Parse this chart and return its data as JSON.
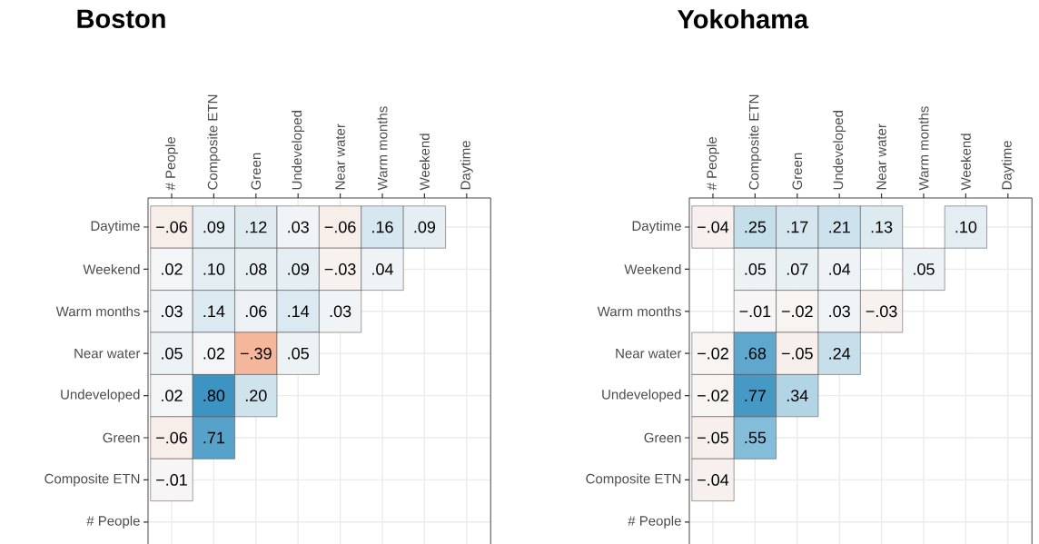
{
  "chart_data": [
    {
      "type": "heatmap",
      "title": "Boston",
      "grid": true,
      "categories": [
        "# People",
        "Composite ETN",
        "Green",
        "Undeveloped",
        "Near water",
        "Warm months",
        "Weekend",
        "Daytime"
      ],
      "y_categories": [
        "Daytime",
        "Weekend",
        "Warm months",
        "Near water",
        "Undeveloped",
        "Green",
        "Composite ETN",
        "# People"
      ],
      "cells": [
        [
          -0.06,
          0.09,
          0.12,
          0.03,
          -0.06,
          0.16,
          0.09,
          null
        ],
        [
          0.02,
          0.1,
          0.08,
          0.09,
          -0.03,
          0.04,
          null,
          null
        ],
        [
          0.03,
          0.14,
          0.06,
          0.14,
          0.03,
          null,
          null,
          null
        ],
        [
          0.05,
          0.02,
          -0.39,
          0.05,
          null,
          null,
          null,
          null
        ],
        [
          0.02,
          0.8,
          0.2,
          null,
          null,
          null,
          null,
          null
        ],
        [
          -0.06,
          0.71,
          null,
          null,
          null,
          null,
          null,
          null
        ],
        [
          -0.01,
          null,
          null,
          null,
          null,
          null,
          null,
          null
        ],
        [
          null,
          null,
          null,
          null,
          null,
          null,
          null,
          null
        ]
      ],
      "cell_labels": [
        [
          "−.06",
          ".09",
          ".12",
          ".03",
          "−.06",
          ".16",
          ".09",
          null
        ],
        [
          ".02",
          ".10",
          ".08",
          ".09",
          "−.03",
          ".04",
          null,
          null
        ],
        [
          ".03",
          ".14",
          ".06",
          ".14",
          ".03",
          null,
          null,
          null
        ],
        [
          ".05",
          ".02",
          "−.39",
          ".05",
          null,
          null,
          null,
          null
        ],
        [
          ".02",
          ".80",
          ".20",
          null,
          null,
          null,
          null,
          null
        ],
        [
          "−.06",
          ".71",
          null,
          null,
          null,
          null,
          null,
          null
        ],
        [
          "−.01",
          null,
          null,
          null,
          null,
          null,
          null,
          null
        ],
        [
          null,
          null,
          null,
          null,
          null,
          null,
          null,
          null
        ]
      ]
    },
    {
      "type": "heatmap",
      "title": "Yokohama",
      "grid": true,
      "categories": [
        "# People",
        "Composite ETN",
        "Green",
        "Undeveloped",
        "Near water",
        "Warm months",
        "Weekend",
        "Daytime"
      ],
      "y_categories": [
        "Daytime",
        "Weekend",
        "Warm months",
        "Near water",
        "Undeveloped",
        "Green",
        "Composite ETN",
        "# People"
      ],
      "cells": [
        [
          -0.04,
          0.25,
          0.17,
          0.21,
          0.13,
          null,
          0.1,
          null
        ],
        [
          null,
          0.05,
          0.07,
          0.04,
          null,
          0.05,
          null,
          null
        ],
        [
          null,
          -0.01,
          -0.02,
          0.03,
          -0.03,
          null,
          null,
          null
        ],
        [
          -0.02,
          0.68,
          -0.05,
          0.24,
          null,
          null,
          null,
          null
        ],
        [
          -0.02,
          0.77,
          0.34,
          null,
          null,
          null,
          null,
          null
        ],
        [
          -0.05,
          0.55,
          null,
          null,
          null,
          null,
          null,
          null
        ],
        [
          -0.04,
          null,
          null,
          null,
          null,
          null,
          null,
          null
        ],
        [
          null,
          null,
          null,
          null,
          null,
          null,
          null,
          null
        ]
      ],
      "cell_labels": [
        [
          "−.04",
          ".25",
          ".17",
          ".21",
          ".13",
          null,
          ".10",
          null
        ],
        [
          null,
          ".05",
          ".07",
          ".04",
          null,
          ".05",
          null,
          null
        ],
        [
          null,
          "−.01",
          "−.02",
          ".03",
          "−.03",
          null,
          null,
          null
        ],
        [
          "−.02",
          ".68",
          "−.05",
          ".24",
          null,
          null,
          null,
          null
        ],
        [
          "−.02",
          ".77",
          ".34",
          null,
          null,
          null,
          null,
          null
        ],
        [
          "−.05",
          ".55",
          null,
          null,
          null,
          null,
          null,
          null
        ],
        [
          "−.04",
          null,
          null,
          null,
          null,
          null,
          null,
          null
        ],
        [
          null,
          null,
          null,
          null,
          null,
          null,
          null,
          null
        ]
      ]
    }
  ]
}
